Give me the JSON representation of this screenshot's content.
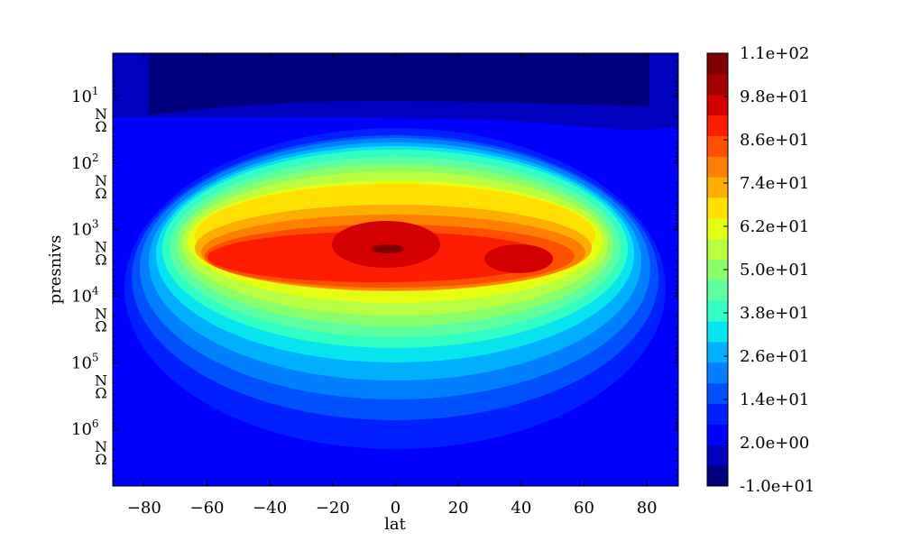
{
  "chart_data": {
    "type": "heatmap",
    "title": "",
    "xlabel": "lat",
    "ylabel": "presnivs",
    "x_tick_labels": [
      "−80",
      "−60",
      "−40",
      "−20",
      "0",
      "20",
      "40",
      "60",
      "80"
    ],
    "x_ticks": [
      -80,
      -60,
      -40,
      -20,
      0,
      20,
      40,
      60,
      80
    ],
    "xlim": [
      -90,
      90
    ],
    "y_scale": "log",
    "y_ticks": [
      {
        "base": "10",
        "exp": "1",
        "unit": "N\nΩ"
      },
      {
        "base": "10",
        "exp": "2",
        "unit": "N\nΩ"
      },
      {
        "base": "10",
        "exp": "3",
        "unit": "N\nΩ"
      },
      {
        "base": "10",
        "exp": "4",
        "unit": "N\nΩ"
      },
      {
        "base": "10",
        "exp": "5",
        "unit": "N\nΩ"
      },
      {
        "base": "10",
        "exp": "6",
        "unit": "N\nΩ"
      }
    ],
    "ylim_exp": [
      0.35,
      6.85
    ],
    "colorbar": {
      "labels": [
        "1.1e+02",
        "9.8e+01",
        "8.6e+01",
        "7.4e+01",
        "6.2e+01",
        "5.0e+01",
        "3.8e+01",
        "2.6e+01",
        "1.4e+01",
        "2.0e+00",
        "-1.0e+01"
      ],
      "levels": [
        -10,
        -4,
        2,
        8,
        14,
        20,
        26,
        32,
        38,
        44,
        50,
        56,
        62,
        68,
        74,
        80,
        86,
        92,
        98,
        104,
        110
      ],
      "colors": [
        "#00007f",
        "#0000bf",
        "#0000fe",
        "#0020ff",
        "#0050ff",
        "#0080ff",
        "#00b0ff",
        "#08e4ee",
        "#32ffc4",
        "#5effa0",
        "#8aff6c",
        "#b7ff40",
        "#e4ff12",
        "#ffe000",
        "#ffae00",
        "#ff8000",
        "#ff4f00",
        "#fe1d00",
        "#d40000",
        "#a30000",
        "#7f0000"
      ]
    },
    "field_description": "zonal-mean field peaking (~110) near lat 0 at about 10^3.5, decreasing toward poles and toward high/low presnivs"
  }
}
